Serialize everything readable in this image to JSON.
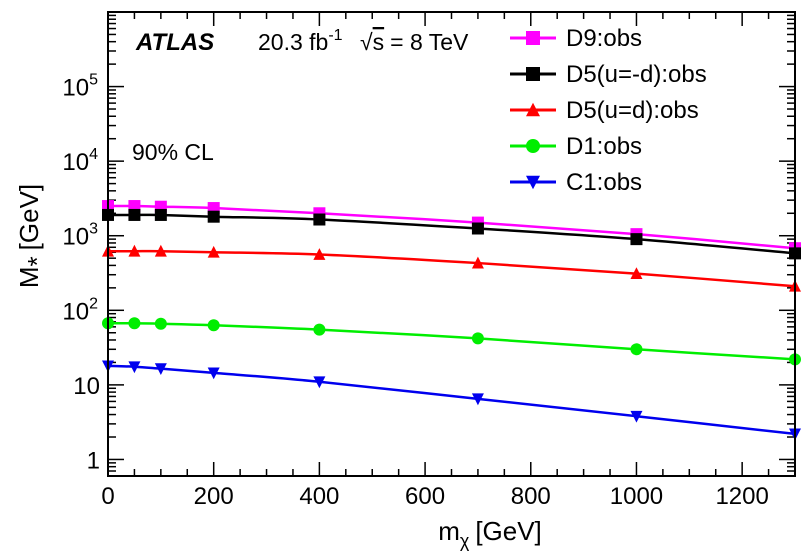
{
  "chart_data": {
    "type": "line",
    "title": "",
    "xlabel": "m_χ [GeV]",
    "xlabel_main": "m",
    "xlabel_sub": "χ",
    "xlabel_unit": "[GeV]",
    "ylabel": "M_* [GeV]",
    "ylabel_main": "M",
    "ylabel_sub": "*",
    "ylabel_unit": "[GeV]",
    "xlim": [
      0,
      1300
    ],
    "ylim": [
      0.6,
      1000000
    ],
    "yscale": "log",
    "x_ticks": [
      0,
      200,
      400,
      600,
      800,
      1000,
      1200
    ],
    "x_tick_labels": [
      "0",
      "200",
      "400",
      "600",
      "800",
      "1000",
      "1200"
    ],
    "y_ticks": [
      {
        "value": 1,
        "base": "1",
        "exp": ""
      },
      {
        "value": 10,
        "base": "10",
        "exp": ""
      },
      {
        "value": 100,
        "base": "10",
        "exp": "2"
      },
      {
        "value": 1000,
        "base": "10",
        "exp": "3"
      },
      {
        "value": 10000,
        "base": "10",
        "exp": "4"
      },
      {
        "value": 100000,
        "base": "10",
        "exp": "5"
      }
    ],
    "annotations": {
      "experiment": "ATLAS",
      "lumi_value": "20.3 fb",
      "lumi_exp": "-1",
      "sqrt_symbol": "√",
      "energy_var": "s",
      "energy_value": "= 8 TeV",
      "cl": "90% CL"
    },
    "legend_position": "top-right",
    "x": [
      0,
      50,
      100,
      200,
      400,
      700,
      1000,
      1300
    ],
    "series": [
      {
        "name": "D9:obs",
        "color": "#ff00ff",
        "marker": "square",
        "values": [
          2500,
          2500,
          2450,
          2350,
          2000,
          1500,
          1050,
          680
        ]
      },
      {
        "name": "D5(u=-d):obs",
        "color": "#000000",
        "marker": "square",
        "values": [
          1900,
          1900,
          1900,
          1800,
          1650,
          1250,
          900,
          580
        ]
      },
      {
        "name": "D5(u=d):obs",
        "color": "#ff0000",
        "marker": "triangle-up",
        "values": [
          620,
          620,
          620,
          600,
          560,
          430,
          310,
          210
        ]
      },
      {
        "name": "D1:obs",
        "color": "#00ee00",
        "marker": "circle",
        "values": [
          67,
          67,
          66,
          63,
          55,
          42,
          30,
          22
        ]
      },
      {
        "name": "C1:obs",
        "color": "#0000ee",
        "marker": "triangle-down",
        "values": [
          18,
          17.5,
          16.5,
          14.5,
          11,
          6.5,
          3.8,
          2.2
        ]
      }
    ]
  }
}
